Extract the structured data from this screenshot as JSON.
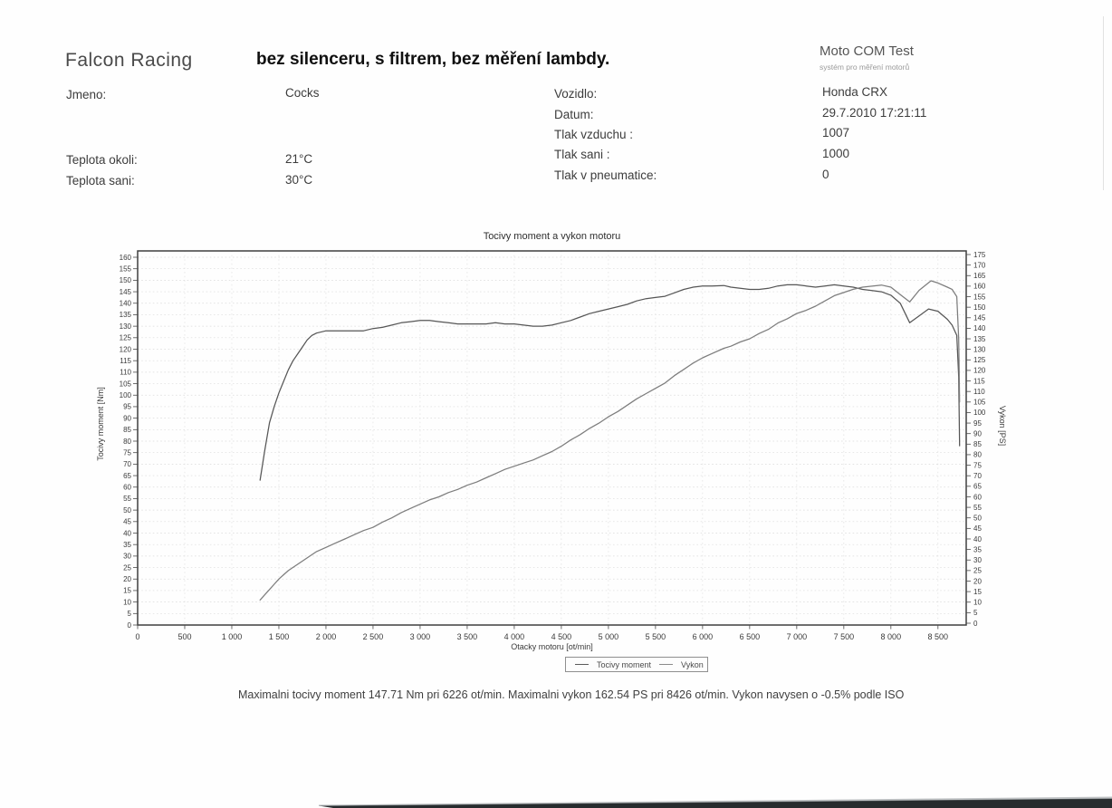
{
  "header": {
    "brand": "Falcon Racing",
    "note": "bez silenceru, s filtrem, bez měření lambdy.",
    "app_name": "Moto COM Test",
    "app_subtitle": "systém pro měření motorů"
  },
  "info": {
    "left": [
      {
        "label": "Jmeno:",
        "value": "Cocks"
      },
      {
        "label": "Teplota okoli:",
        "value": "21°C"
      },
      {
        "label": "Teplota sani:",
        "value": "30°C"
      }
    ],
    "right": [
      {
        "label": "Vozidlo:",
        "value": "Honda CRX"
      },
      {
        "label": "Datum:",
        "value": "29.7.2010 17:21:11"
      },
      {
        "label": "Tlak vzduchu :",
        "value": "1007"
      },
      {
        "label": "Tlak sani :",
        "value": "1000"
      },
      {
        "label": "Tlak v pneumatice:",
        "value": "0"
      }
    ]
  },
  "chart_data": {
    "type": "line",
    "title": "Tocivy moment a vykon motoru",
    "xlabel": "Otacky motoru [ot/min]",
    "x_range": [
      0,
      8800
    ],
    "x_tick_step": 500,
    "x_tick_labels": [
      "0",
      "500",
      "1 000",
      "1 500",
      "2 000",
      "2 500",
      "3 000",
      "3 500",
      "4 000",
      "4 500",
      "5 000",
      "5 500",
      "6 000",
      "6 500",
      "7 000",
      "7 500",
      "8 000",
      "8 500"
    ],
    "y_left": {
      "label": "Tocivy moment [Nm]",
      "min": 0,
      "max": 160,
      "step": 5
    },
    "y_right": {
      "label": "Vykon [PS]",
      "min": 0,
      "max": 175,
      "step": 5
    },
    "grid": true,
    "legend_position": "bottom",
    "series": [
      {
        "name": "Tocivy moment",
        "axis": "left",
        "unit": "Nm",
        "color": "#565656",
        "max_value": 147.71,
        "max_at_rpm": 6226,
        "points": [
          [
            1300,
            63
          ],
          [
            1350,
            76
          ],
          [
            1400,
            88
          ],
          [
            1450,
            95
          ],
          [
            1500,
            101
          ],
          [
            1550,
            106
          ],
          [
            1600,
            111
          ],
          [
            1650,
            115
          ],
          [
            1700,
            118
          ],
          [
            1750,
            121
          ],
          [
            1800,
            124
          ],
          [
            1850,
            126
          ],
          [
            1900,
            127
          ],
          [
            2000,
            128
          ],
          [
            2100,
            128
          ],
          [
            2200,
            128
          ],
          [
            2300,
            128
          ],
          [
            2400,
            128
          ],
          [
            2500,
            129
          ],
          [
            2600,
            129.5
          ],
          [
            2700,
            130.5
          ],
          [
            2800,
            131.5
          ],
          [
            2900,
            132
          ],
          [
            3000,
            132.5
          ],
          [
            3100,
            132.5
          ],
          [
            3200,
            132
          ],
          [
            3300,
            131.5
          ],
          [
            3400,
            131
          ],
          [
            3500,
            131
          ],
          [
            3600,
            131
          ],
          [
            3700,
            131
          ],
          [
            3800,
            131.5
          ],
          [
            3900,
            131
          ],
          [
            4000,
            131
          ],
          [
            4100,
            130.5
          ],
          [
            4200,
            130
          ],
          [
            4300,
            130
          ],
          [
            4400,
            130.5
          ],
          [
            4500,
            131.5
          ],
          [
            4600,
            132.5
          ],
          [
            4700,
            134
          ],
          [
            4800,
            135.5
          ],
          [
            4900,
            136.5
          ],
          [
            5000,
            137.5
          ],
          [
            5100,
            138.5
          ],
          [
            5200,
            139.5
          ],
          [
            5300,
            141
          ],
          [
            5400,
            142
          ],
          [
            5500,
            142.5
          ],
          [
            5600,
            143
          ],
          [
            5700,
            144.5
          ],
          [
            5800,
            146
          ],
          [
            5900,
            147
          ],
          [
            6000,
            147.5
          ],
          [
            6100,
            147.5
          ],
          [
            6226,
            147.71
          ],
          [
            6300,
            147
          ],
          [
            6400,
            146.5
          ],
          [
            6500,
            146
          ],
          [
            6600,
            146
          ],
          [
            6700,
            146.5
          ],
          [
            6800,
            147.5
          ],
          [
            6900,
            148
          ],
          [
            7000,
            148
          ],
          [
            7100,
            147.5
          ],
          [
            7200,
            147
          ],
          [
            7300,
            147.5
          ],
          [
            7400,
            148
          ],
          [
            7500,
            147.5
          ],
          [
            7600,
            147
          ],
          [
            7700,
            146
          ],
          [
            7800,
            145.5
          ],
          [
            7900,
            145
          ],
          [
            8000,
            143.5
          ],
          [
            8100,
            140
          ],
          [
            8200,
            131.5
          ],
          [
            8300,
            134.5
          ],
          [
            8400,
            137.5
          ],
          [
            8500,
            136.5
          ],
          [
            8600,
            133
          ],
          [
            8650,
            130.5
          ],
          [
            8700,
            126
          ],
          [
            8720,
            108
          ],
          [
            8730,
            78
          ]
        ]
      },
      {
        "name": "Vykon",
        "axis": "right",
        "unit": "PS",
        "color": "#7d7d7d",
        "max_value": 162.54,
        "max_at_rpm": 8426,
        "points": [
          [
            1300,
            11
          ],
          [
            1350,
            13.5
          ],
          [
            1400,
            16
          ],
          [
            1450,
            18.5
          ],
          [
            1500,
            21
          ],
          [
            1550,
            23
          ],
          [
            1600,
            25
          ],
          [
            1650,
            26.5
          ],
          [
            1700,
            28
          ],
          [
            1750,
            29.5
          ],
          [
            1800,
            31
          ],
          [
            1850,
            32.5
          ],
          [
            1900,
            34
          ],
          [
            2000,
            36
          ],
          [
            2100,
            38
          ],
          [
            2200,
            40
          ],
          [
            2300,
            42
          ],
          [
            2400,
            44
          ],
          [
            2500,
            45.5
          ],
          [
            2600,
            48
          ],
          [
            2700,
            50
          ],
          [
            2800,
            52.5
          ],
          [
            2900,
            54.5
          ],
          [
            3000,
            56.5
          ],
          [
            3100,
            58.5
          ],
          [
            3200,
            60
          ],
          [
            3300,
            62
          ],
          [
            3400,
            63.5
          ],
          [
            3500,
            65.5
          ],
          [
            3600,
            67
          ],
          [
            3700,
            69
          ],
          [
            3800,
            71
          ],
          [
            3900,
            73
          ],
          [
            4000,
            74.5
          ],
          [
            4100,
            76
          ],
          [
            4200,
            77.5
          ],
          [
            4300,
            79.5
          ],
          [
            4400,
            81.5
          ],
          [
            4500,
            84
          ],
          [
            4600,
            87
          ],
          [
            4700,
            89.5
          ],
          [
            4800,
            92.5
          ],
          [
            4900,
            95
          ],
          [
            5000,
            98
          ],
          [
            5100,
            100.5
          ],
          [
            5200,
            103.5
          ],
          [
            5300,
            106.5
          ],
          [
            5400,
            109
          ],
          [
            5500,
            111.5
          ],
          [
            5600,
            114
          ],
          [
            5700,
            117.5
          ],
          [
            5800,
            120.5
          ],
          [
            5900,
            123.5
          ],
          [
            6000,
            126
          ],
          [
            6100,
            128
          ],
          [
            6226,
            130.5
          ],
          [
            6300,
            131.5
          ],
          [
            6400,
            133.5
          ],
          [
            6500,
            135
          ],
          [
            6600,
            137.5
          ],
          [
            6700,
            139.5
          ],
          [
            6800,
            142.5
          ],
          [
            6900,
            144.5
          ],
          [
            7000,
            147
          ],
          [
            7100,
            148.5
          ],
          [
            7200,
            150.5
          ],
          [
            7300,
            153
          ],
          [
            7400,
            155.5
          ],
          [
            7500,
            157
          ],
          [
            7600,
            158.5
          ],
          [
            7700,
            159.5
          ],
          [
            7800,
            160
          ],
          [
            7900,
            160.5
          ],
          [
            8000,
            159.5
          ],
          [
            8100,
            156
          ],
          [
            8200,
            152.5
          ],
          [
            8300,
            158
          ],
          [
            8426,
            162.54
          ],
          [
            8500,
            161.5
          ],
          [
            8600,
            159.5
          ],
          [
            8650,
            158.5
          ],
          [
            8700,
            155
          ],
          [
            8720,
            135
          ],
          [
            8730,
            105
          ]
        ]
      }
    ]
  },
  "footer": {
    "summary": "Maximalni tocivy moment 147.71 Nm pri 6226 ot/min.  Maximalni vykon 162.54 PS pri 8426 ot/min.  Vykon navysen o -0.5% podle ISO"
  }
}
